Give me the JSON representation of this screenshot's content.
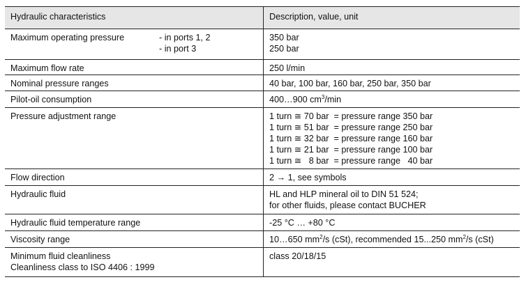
{
  "header": {
    "left": "Hydraulic characteristics",
    "right": "Description, value, unit"
  },
  "rows": [
    {
      "label": "Maximum operating pressure",
      "sub": [
        "- in ports 1, 2",
        "- in port 3"
      ],
      "values": [
        "350 bar",
        "250 bar"
      ]
    },
    {
      "label": "Maximum flow rate",
      "values": [
        "250 l/min"
      ]
    },
    {
      "label": "Nominal pressure ranges",
      "values": [
        "40 bar, 100 bar, 160 bar, 250 bar, 350 bar"
      ]
    },
    {
      "label": "Pilot-oil consumption",
      "value_pre": "400…900 cm",
      "value_sup": "3",
      "value_post": "/min"
    },
    {
      "label": "Pressure adjustment range",
      "values": [
        "1 turn ≅ 70 bar  = pressure range 350 bar",
        "1 turn ≅ 51 bar  = pressure range 250 bar",
        "1 turn ≅ 32 bar  = pressure range 160 bar",
        "1 turn ≅ 21 bar  = pressure range 100 bar",
        "1 turn ≅   8 bar  = pressure range   40 bar"
      ]
    },
    {
      "label": "Flow direction",
      "values": [
        "2 → 1,  see symbols"
      ]
    },
    {
      "label": "Hydraulic fluid",
      "values": [
        "HL and HLP mineral oil to DIN 51 524;",
        "for other fluids, please contact BUCHER"
      ]
    },
    {
      "label": "Hydraulic fluid temperature range",
      "values": [
        "-25 °C … +80 °C"
      ]
    },
    {
      "label": "Viscosity range",
      "v1": "10…650 mm",
      "sup1": "2",
      "v2": "/s (cSt), recommended 15...250 mm",
      "sup2": "2",
      "v3": "/s (cSt)"
    },
    {
      "labels": [
        "Minimum fluid cleanliness",
        "Cleanliness class to ISO 4406 : 1999"
      ],
      "values": [
        "class 20/18/15"
      ]
    }
  ]
}
